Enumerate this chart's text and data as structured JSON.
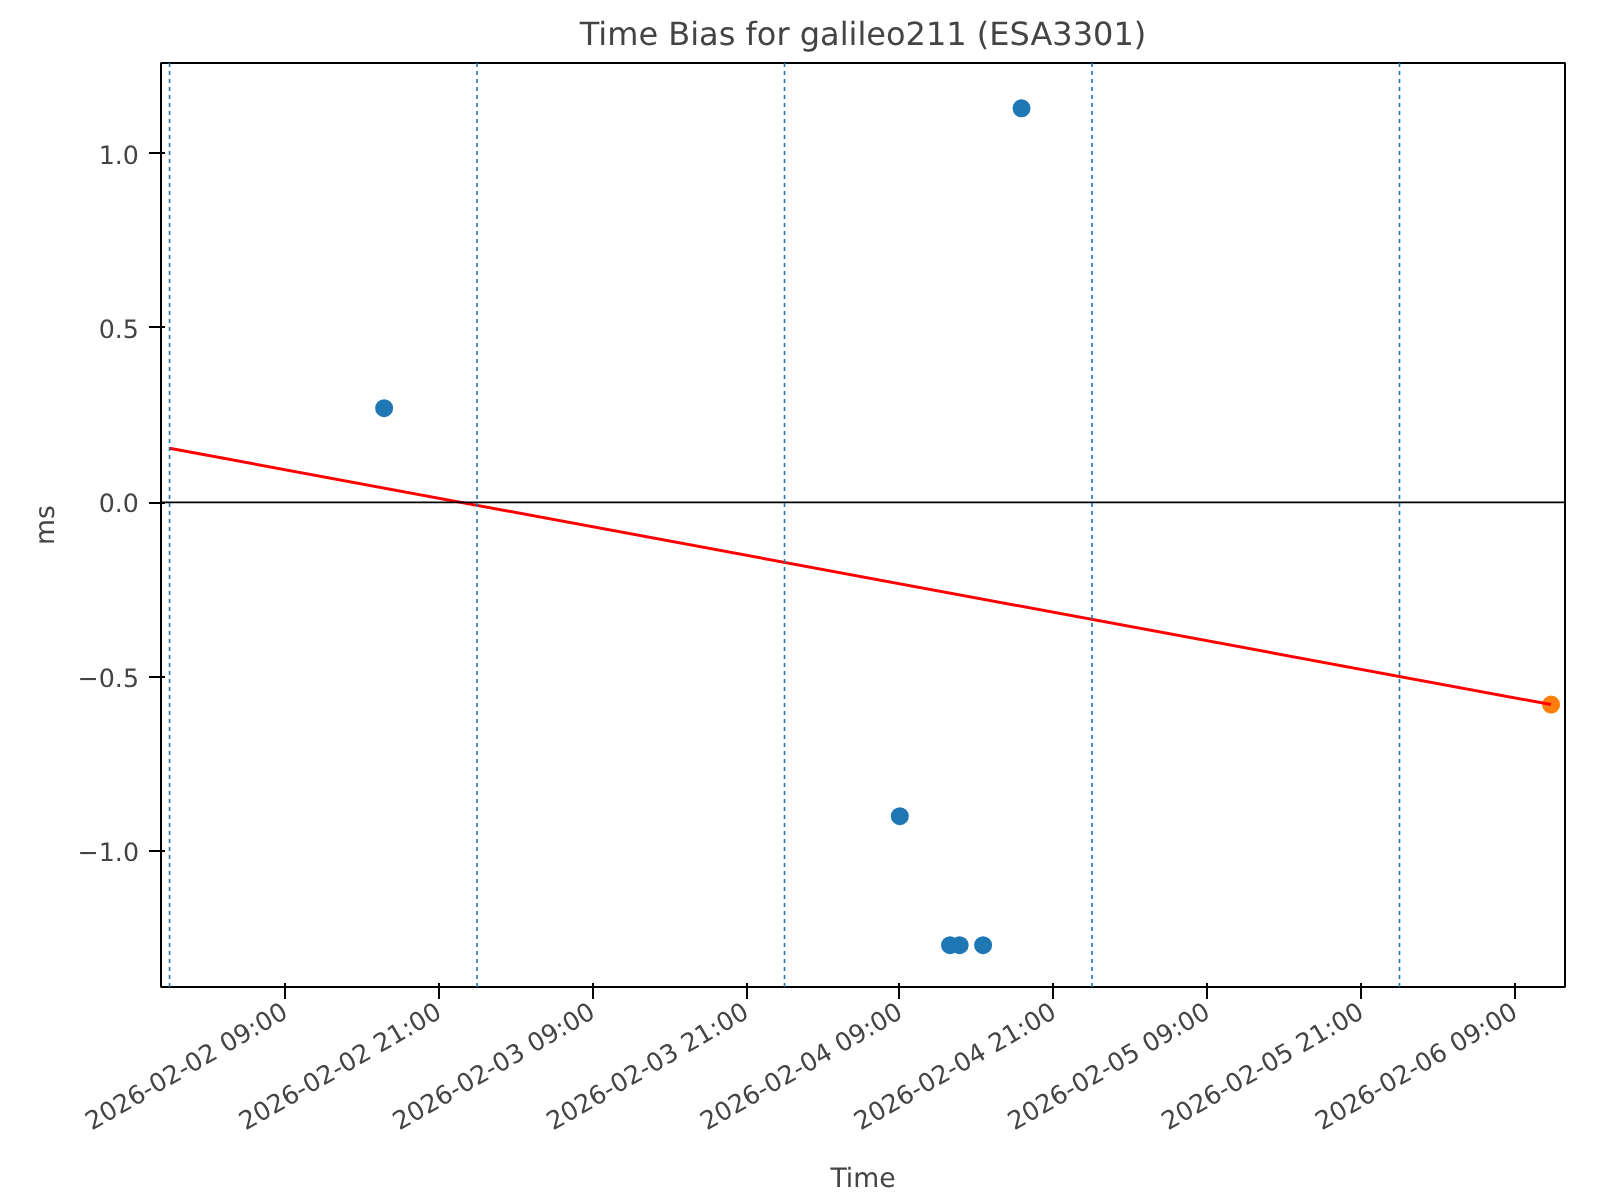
{
  "chart_data": {
    "type": "scatter",
    "title": "Time Bias for galileo211 (ESA3301)",
    "xlabel": "Time",
    "ylabel": "ms",
    "xlim": [
      "2026-02-01T23:20",
      "2026-02-06T12:55"
    ],
    "xticks": [
      {
        "value": "2026-02-02T09:00",
        "label": "2026-02-02 09:00"
      },
      {
        "value": "2026-02-02T21:00",
        "label": "2026-02-02 21:00"
      },
      {
        "value": "2026-02-03T09:00",
        "label": "2026-02-03 09:00"
      },
      {
        "value": "2026-02-03T21:00",
        "label": "2026-02-03 21:00"
      },
      {
        "value": "2026-02-04T09:00",
        "label": "2026-02-04 09:00"
      },
      {
        "value": "2026-02-04T21:00",
        "label": "2026-02-04 21:00"
      },
      {
        "value": "2026-02-05T09:00",
        "label": "2026-02-05 09:00"
      },
      {
        "value": "2026-02-05T21:00",
        "label": "2026-02-05 21:00"
      },
      {
        "value": "2026-02-06T09:00",
        "label": "2026-02-06 09:00"
      }
    ],
    "ylim": [
      -1.39,
      1.26
    ],
    "yticks": [
      {
        "value": -1.0,
        "label": "−1.0"
      },
      {
        "value": -0.5,
        "label": "−0.5"
      },
      {
        "value": 0.0,
        "label": "0.0"
      },
      0.5,
      {
        "value": 1.0,
        "label": "1.0"
      }
    ],
    "grid": false,
    "series": [
      {
        "marker": "circle",
        "color": "#1f77b4",
        "x": [
          "2026-02-02T16:45",
          "2026-02-04T09:00",
          "2026-02-04T12:55",
          "2026-02-04T13:40",
          "2026-02-04T15:30",
          "2026-02-04T18:30"
        ],
        "values": [
          0.27,
          -0.9,
          -1.27,
          -1.27,
          -1.27,
          1.13
        ]
      },
      {
        "marker": "circle",
        "color": "#ff7f0e",
        "x": [
          "2026-02-06T11:50"
        ],
        "values": [
          -0.58
        ]
      },
      {
        "type": "line",
        "color": "#ff0000",
        "line_style": "solid",
        "x": [
          "2026-02-02T00:00",
          "2026-02-06T11:50"
        ],
        "values": [
          0.155,
          -0.58
        ]
      }
    ],
    "ref_lines": [
      {
        "axis": "y",
        "value": 0.0,
        "color": "#000000",
        "line_style": "solid"
      },
      {
        "axis": "x",
        "value": "2026-02-02T00:00",
        "color": "#1f77b4",
        "line_style": "dotted"
      },
      {
        "axis": "x",
        "value": "2026-02-03T00:00",
        "color": "#1f77b4",
        "line_style": "dotted"
      },
      {
        "axis": "x",
        "value": "2026-02-04T00:00",
        "color": "#1f77b4",
        "line_style": "dotted"
      },
      {
        "axis": "x",
        "value": "2026-02-05T00:00",
        "color": "#1f77b4",
        "line_style": "dotted"
      },
      {
        "axis": "x",
        "value": "2026-02-06T00:00",
        "color": "#1f77b4",
        "line_style": "dotted"
      }
    ]
  }
}
